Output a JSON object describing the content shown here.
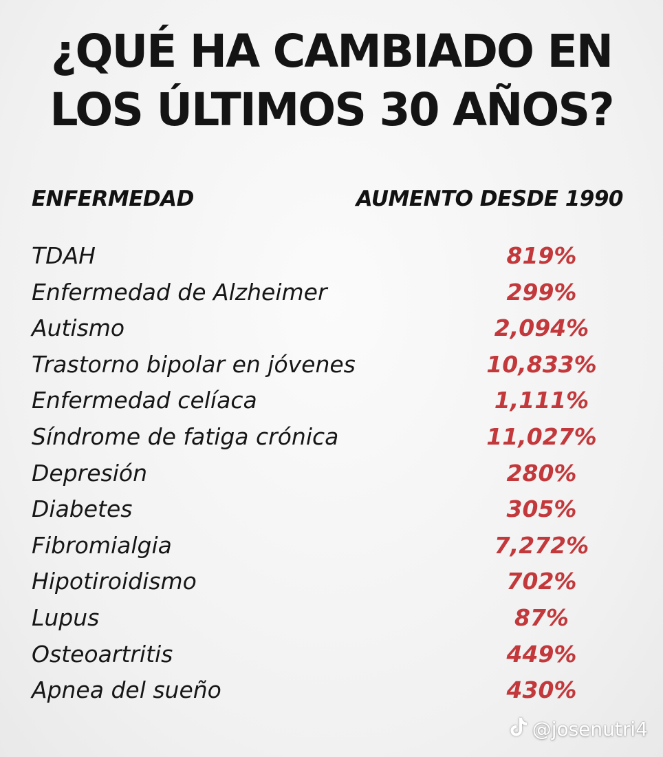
{
  "title": {
    "line1": "¿QUÉ HA CAMBIADO EN",
    "line2": "LOS ÚLTIMOS 30 AÑOS?"
  },
  "table": {
    "header_left": "ENFERMEDAD",
    "header_right": "AUMENTO DESDE 1990",
    "rows": [
      {
        "disease": "TDAH",
        "increase": "819%"
      },
      {
        "disease": "Enfermedad de Alzheimer",
        "increase": "299%"
      },
      {
        "disease": "Autismo",
        "increase": "2,094%"
      },
      {
        "disease": "Trastorno bipolar en jóvenes",
        "increase": "10,833%"
      },
      {
        "disease": "Enfermedad celíaca",
        "increase": "1,111%"
      },
      {
        "disease": "Síndrome de fatiga crónica",
        "increase": "11,027%"
      },
      {
        "disease": "Depresión",
        "increase": "280%"
      },
      {
        "disease": "Diabetes",
        "increase": "305%"
      },
      {
        "disease": "Fibromialgia",
        "increase": "7,272%"
      },
      {
        "disease": "Hipotiroidismo",
        "increase": "702%"
      },
      {
        "disease": "Lupus",
        "increase": "87%"
      },
      {
        "disease": "Osteoartritis",
        "increase": "449%"
      },
      {
        "disease": "Apnea del sueño",
        "increase": "430%"
      }
    ]
  },
  "watermark": {
    "handle": "@josenutri4",
    "icon": "tiktok-icon"
  },
  "colors": {
    "title": "#141414",
    "percent": "#c2383b",
    "background": "#f3f3f3"
  }
}
